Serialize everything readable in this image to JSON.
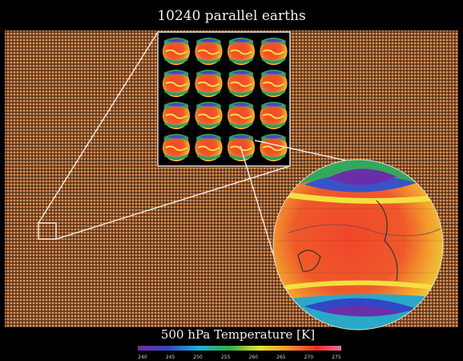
{
  "title": "10240 parallel earths",
  "colorbar": {
    "label": "500 hPa Temperature [K]",
    "ticks": [
      240,
      245,
      250,
      255,
      260,
      265,
      270,
      275
    ]
  }
}
